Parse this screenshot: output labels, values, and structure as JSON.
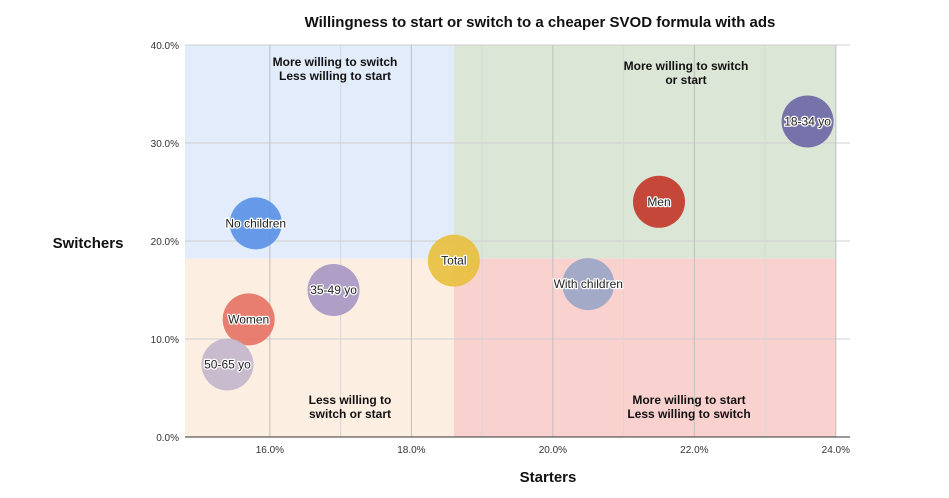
{
  "chart_data": {
    "type": "scatter",
    "title": "Willingness to start or switch to a cheaper SVOD formula with ads",
    "xlabel": "Starters",
    "ylabel": "Switchers",
    "xlim": [
      14.8,
      24.2
    ],
    "ylim": [
      0,
      40
    ],
    "xticks": [
      16,
      18,
      20,
      22,
      24
    ],
    "yticks": [
      0,
      10,
      20,
      30,
      40
    ],
    "xtick_labels": [
      "16.0%",
      "18.0%",
      "20.0%",
      "22.0%",
      "24.0%"
    ],
    "ytick_labels": [
      "0.0%",
      "10.0%",
      "20.0%",
      "30.0%",
      "40.0%"
    ],
    "grid": true,
    "divider": {
      "x": 18.6,
      "y": 18.2
    },
    "quadrants": [
      {
        "position": "top-left",
        "lines": [
          "More willing to switch",
          "Less willing to start"
        ],
        "color": "#e3ecfb"
      },
      {
        "position": "top-right",
        "lines": [
          "More willing to switch",
          "or start"
        ],
        "color": "#dbe6d6"
      },
      {
        "position": "bottom-left",
        "lines": [
          "Less willing to",
          "switch or start"
        ],
        "color": "#fdeee2"
      },
      {
        "position": "bottom-right",
        "lines": [
          "More willing to start",
          "Less willing to switch"
        ],
        "color": "#f9d1cf"
      }
    ],
    "points": [
      {
        "label": "No children",
        "x": 15.8,
        "y": 21.8,
        "color": "#5b93e6"
      },
      {
        "label": "Total",
        "x": 18.6,
        "y": 18.0,
        "color": "#e8c040"
      },
      {
        "label": "35-49 yo",
        "x": 16.9,
        "y": 15.0,
        "color": "#a898c4"
      },
      {
        "label": "Women",
        "x": 15.7,
        "y": 12.0,
        "color": "#e57465"
      },
      {
        "label": "50-65 yo",
        "x": 15.4,
        "y": 7.4,
        "color": "#c3b6cc"
      },
      {
        "label": "With children",
        "x": 20.5,
        "y": 15.6,
        "color": "#9aa6c8"
      },
      {
        "label": "Men",
        "x": 21.5,
        "y": 24.0,
        "color": "#c23a2b"
      },
      {
        "label": "18-34 yo",
        "x": 23.6,
        "y": 32.2,
        "color": "#6e69a6"
      }
    ]
  }
}
